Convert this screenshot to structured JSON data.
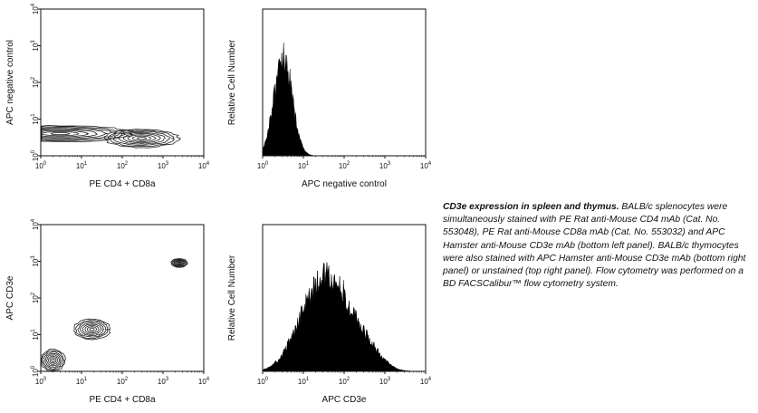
{
  "chart_data": [
    {
      "id": "top-left",
      "type": "contour",
      "xlabel": "PE CD4 + CD8a",
      "ylabel": "APC negative control",
      "xscale": "log",
      "yscale": "log",
      "xlim": [
        1,
        10000
      ],
      "ylim": [
        1,
        10000
      ],
      "x_ticks": [
        "10^0",
        "10^1",
        "10^2",
        "10^3",
        "10^4"
      ],
      "y_ticks": [
        "10^0",
        "10^1",
        "10^2",
        "10^3",
        "10^4"
      ],
      "populations": [
        {
          "x": 3,
          "y": 4,
          "spread_x": 1.8,
          "spread_y": 0.22
        },
        {
          "x": 300,
          "y": 3,
          "spread_x": 0.9,
          "spread_y": 0.25
        }
      ]
    },
    {
      "id": "top-right",
      "type": "histogram",
      "xlabel": "APC negative control",
      "ylabel": "Relative Cell Number",
      "xscale": "log",
      "xlim": [
        1,
        10000
      ],
      "x_ticks": [
        "10^0",
        "10^1",
        "10^2",
        "10^3",
        "10^4"
      ],
      "peak_x": 3.2,
      "peak_height_fraction": 0.68
    },
    {
      "id": "bottom-left",
      "type": "contour",
      "xlabel": "PE CD4 + CD8a",
      "ylabel": "APC CD3e",
      "xscale": "log",
      "yscale": "log",
      "xlim": [
        1,
        10000
      ],
      "ylim": [
        1,
        10000
      ],
      "x_ticks": [
        "10^0",
        "10^1",
        "10^2",
        "10^3",
        "10^4"
      ],
      "y_ticks": [
        "10^0",
        "10^1",
        "10^2",
        "10^3",
        "10^4"
      ],
      "populations": [
        {
          "x": 18,
          "y": 14,
          "spread_x": 0.45,
          "spread_y": 0.28
        },
        {
          "x": 2500,
          "y": 900,
          "spread_x": 0.2,
          "spread_y": 0.12
        },
        {
          "x": 2,
          "y": 2,
          "spread_x": 0.3,
          "spread_y": 0.3
        }
      ]
    },
    {
      "id": "bottom-right",
      "type": "histogram",
      "xlabel": "APC CD3e",
      "ylabel": "Relative Cell Number",
      "xscale": "log",
      "xlim": [
        1,
        10000
      ],
      "x_ticks": [
        "10^0",
        "10^1",
        "10^2",
        "10^3",
        "10^4"
      ],
      "peak_x": 50,
      "peak_height_fraction": 0.6
    }
  ],
  "caption": {
    "lead": "CD3e expression in spleen and thymus.",
    "body": " BALB/c splenocytes were simultaneously stained with PE Rat anti-Mouse CD4 mAb (Cat. No. 553048), PE Rat anti-Mouse CD8a mAb (Cat. No. 553032) and APC Hamster anti-Mouse CD3e mAb (bottom left panel). BALB/c thymocytes were also stained with APC Hamster anti-Mouse CD3e mAb (bottom right panel) or unstained (top right panel). Flow cytometry was performed on a BD FACSCalibur™ flow cytometry system."
  }
}
